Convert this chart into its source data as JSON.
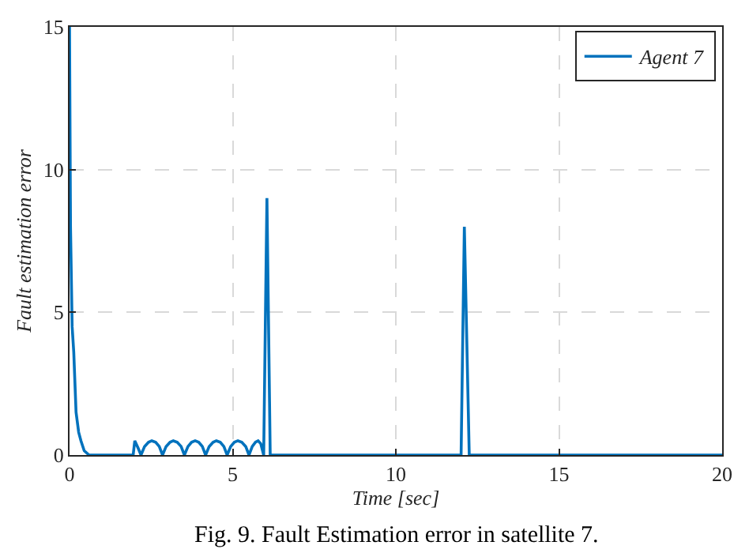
{
  "chart_data": {
    "type": "line",
    "xlabel": "Time [sec]",
    "ylabel": "Fault estimation error",
    "annotations": [
      "Fig. 9. Fault Estimation error in satellite 7."
    ],
    "xlim": [
      0,
      20
    ],
    "ylim": [
      0,
      15
    ],
    "xticks": [
      0,
      5,
      10,
      15,
      20
    ],
    "yticks": [
      0,
      5,
      10,
      15
    ],
    "grid": true,
    "legend": "top right",
    "line_style": "solid",
    "marker": "none",
    "series": [
      {
        "name": "Agent 7",
        "color": "#0072bd",
        "x": [
          0,
          0.03,
          0.08,
          0.13,
          0.2,
          0.28,
          0.35,
          0.45,
          0.6,
          1.95,
          2.0,
          2.1,
          2.19,
          2.3,
          2.42,
          2.52,
          2.64,
          2.75,
          2.85,
          2.96,
          3.08,
          3.18,
          3.3,
          3.42,
          3.52,
          3.63,
          3.74,
          3.85,
          3.96,
          4.07,
          4.17,
          4.28,
          4.4,
          4.5,
          4.62,
          4.73,
          4.83,
          4.94,
          5.05,
          5.16,
          5.28,
          5.4,
          5.5,
          5.6,
          5.7,
          5.78,
          5.86,
          5.95,
          6.05,
          6.15,
          12.0,
          12.1,
          12.25,
          20
        ],
        "values": [
          15,
          8,
          4.5,
          3.6,
          1.5,
          0.8,
          0.5,
          0.15,
          0,
          0,
          0.5,
          0.25,
          0,
          0.3,
          0.45,
          0.5,
          0.45,
          0.3,
          0,
          0.3,
          0.45,
          0.5,
          0.45,
          0.3,
          0,
          0.3,
          0.45,
          0.5,
          0.45,
          0.3,
          0,
          0.3,
          0.45,
          0.5,
          0.45,
          0.3,
          0,
          0.3,
          0.45,
          0.5,
          0.45,
          0.3,
          0,
          0.3,
          0.45,
          0.5,
          0.4,
          0,
          9,
          0,
          0,
          8,
          0,
          0
        ]
      }
    ]
  }
}
